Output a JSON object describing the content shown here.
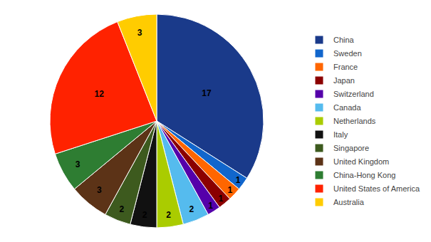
{
  "chart_data": {
    "type": "pie",
    "categories": [
      "China",
      "Sweden",
      "France",
      "Japan",
      "Switzerland",
      "Canada",
      "Netherlands",
      "Italy",
      "Singapore",
      "United Kingdom",
      "China-Hong Kong",
      "United States of America",
      "Australia"
    ],
    "values": [
      17,
      1,
      1,
      1,
      1,
      2,
      2,
      2,
      2,
      3,
      3,
      12,
      3
    ],
    "colors": [
      "#1a3a8a",
      "#1166cc",
      "#ff6600",
      "#8b0000",
      "#5500aa",
      "#55bbee",
      "#aacc00",
      "#111111",
      "#3d5a1e",
      "#5c3317",
      "#2e7d32",
      "#ff2200",
      "#ffcc00"
    ],
    "data_labels": true,
    "legend": "right"
  }
}
